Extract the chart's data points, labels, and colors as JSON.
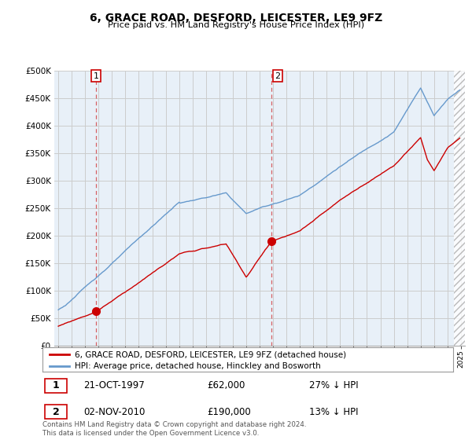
{
  "title": "6, GRACE ROAD, DESFORD, LEICESTER, LE9 9FZ",
  "subtitle": "Price paid vs. HM Land Registry's House Price Index (HPI)",
  "property_label": "6, GRACE ROAD, DESFORD, LEICESTER, LE9 9FZ (detached house)",
  "hpi_label": "HPI: Average price, detached house, Hinckley and Bosworth",
  "transaction1_date": "21-OCT-1997",
  "transaction1_price": "£62,000",
  "transaction1_hpi": "27% ↓ HPI",
  "transaction2_date": "02-NOV-2010",
  "transaction2_price": "£190,000",
  "transaction2_hpi": "13% ↓ HPI",
  "footnote": "Contains HM Land Registry data © Crown copyright and database right 2024.\nThis data is licensed under the Open Government Licence v3.0.",
  "property_color": "#cc0000",
  "hpi_color": "#6699cc",
  "background_color": "#ffffff",
  "chart_bg_color": "#e8f0f8",
  "grid_color": "#cccccc",
  "ylim": [
    0,
    500000
  ],
  "yticks": [
    0,
    50000,
    100000,
    150000,
    200000,
    250000,
    300000,
    350000,
    400000,
    450000,
    500000
  ],
  "vline_color": "#cc0000",
  "vline1_x": 1997.8,
  "vline2_x": 2010.85,
  "marker1_x": 1997.8,
  "marker1_y": 62000,
  "marker2_x": 2010.85,
  "marker2_y": 190000,
  "xmin": 1994.7,
  "xmax": 2025.3
}
